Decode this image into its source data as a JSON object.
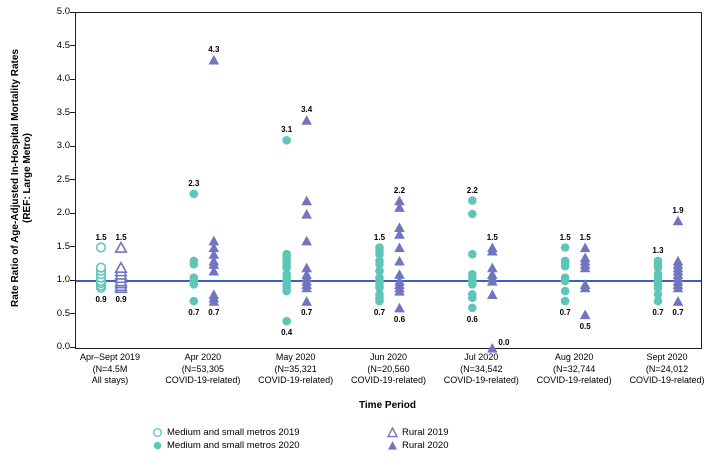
{
  "colors": {
    "teal": "#5ec6b6",
    "purple": "#7175bf",
    "reference_line": "#3b5fc7",
    "axis": "#231f20",
    "text": "#000000"
  },
  "chart_data": {
    "type": "scatter",
    "ylabel_line1": "Rate Ratio of Age-Adjusted In-Hospital Mortality Rates",
    "ylabel_line2": "(REF: Large Metro)",
    "xlabel": "Time Period",
    "ylim": [
      0.0,
      5.0
    ],
    "ytick_step": 0.5,
    "reference_line_y": 1.0,
    "legend_position": "bottom",
    "grid": false,
    "groups": [
      {
        "label_lines": [
          "Apr–Sept 2019",
          "(N=4.5M",
          "All stays)"
        ],
        "series": [
          {
            "name": "Medium and small metros 2019",
            "marker": "circle-open",
            "color": "teal",
            "values": [
              1.5,
              1.2,
              1.15,
              1.1,
              1.05,
              1.0,
              0.97,
              0.93,
              0.9
            ],
            "max_label": "1.5",
            "min_label": "0.9"
          },
          {
            "name": "Rural 2019",
            "marker": "triangle-open",
            "color": "purple",
            "values": [
              1.5,
              1.2,
              1.15,
              1.1,
              1.05,
              1.0,
              0.97,
              0.93,
              0.9
            ],
            "max_label": "1.5",
            "min_label": "0.9"
          }
        ]
      },
      {
        "label_lines": [
          "Apr 2020",
          "(N=53,305",
          "COVID-19-related)"
        ],
        "series": [
          {
            "name": "Medium and small metros 2020",
            "marker": "circle-filled",
            "color": "teal",
            "values": [
              2.3,
              1.3,
              1.25,
              1.05,
              1.0,
              0.95,
              0.7
            ],
            "max_label": "2.3",
            "min_label": "0.7"
          },
          {
            "name": "Rural 2020",
            "marker": "triangle-filled",
            "color": "purple",
            "values": [
              4.3,
              1.6,
              1.5,
              1.4,
              1.3,
              1.25,
              1.15,
              0.8,
              0.75,
              0.7
            ],
            "max_label": "4.3",
            "min_label": "0.7"
          }
        ]
      },
      {
        "label_lines": [
          "May 2020",
          "(N=35,321",
          "COVID-19-related)"
        ],
        "series": [
          {
            "name": "Medium and small metros 2020",
            "marker": "circle-filled",
            "color": "teal",
            "values": [
              3.1,
              1.4,
              1.35,
              1.3,
              1.25,
              1.2,
              1.1,
              1.05,
              1.0,
              0.95,
              0.9,
              0.85,
              0.4
            ],
            "max_label": "3.1",
            "min_label": "0.4"
          },
          {
            "name": "Rural 2020",
            "marker": "triangle-filled",
            "color": "purple",
            "values": [
              3.4,
              2.2,
              2.0,
              1.6,
              1.2,
              1.1,
              1.05,
              1.0,
              0.95,
              0.9,
              0.7
            ],
            "max_label": "3.4",
            "min_label": "0.7"
          }
        ]
      },
      {
        "label_lines": [
          "Jun 2020",
          "(N=20,560",
          "COVID-19-related)"
        ],
        "series": [
          {
            "name": "Medium and small metros 2020",
            "marker": "circle-filled",
            "color": "teal",
            "values": [
              1.5,
              1.45,
              1.4,
              1.3,
              1.25,
              1.15,
              1.05,
              1.0,
              0.95,
              0.9,
              0.8,
              0.75,
              0.7
            ],
            "max_label": "1.5",
            "min_label": "0.7"
          },
          {
            "name": "Rural 2020",
            "marker": "triangle-filled",
            "color": "purple",
            "values": [
              2.2,
              2.1,
              1.8,
              1.7,
              1.5,
              1.3,
              1.1,
              1.0,
              0.95,
              0.9,
              0.85,
              0.6
            ],
            "max_label": "2.2",
            "min_label": "0.6"
          }
        ]
      },
      {
        "label_lines": [
          "Jul 2020",
          "(N=34,542",
          "COVID-19-related)"
        ],
        "series": [
          {
            "name": "Medium and small metros 2020",
            "marker": "circle-filled",
            "color": "teal",
            "values": [
              2.2,
              2.0,
              1.4,
              1.1,
              1.05,
              1.0,
              0.95,
              0.8,
              0.75,
              0.6
            ],
            "max_label": "2.2",
            "min_label": "0.6"
          },
          {
            "name": "Rural 2020",
            "marker": "triangle-filled",
            "color": "purple",
            "values": [
              1.5,
              1.45,
              1.2,
              1.1,
              1.05,
              1.0,
              0.8,
              0.0
            ],
            "max_label": "1.5",
            "min_label": "0.0",
            "min_label_placement": "right"
          }
        ]
      },
      {
        "label_lines": [
          "Aug 2020",
          "(N=32,744",
          "COVID-19-related)"
        ],
        "series": [
          {
            "name": "Medium and small metros 2020",
            "marker": "circle-filled",
            "color": "teal",
            "values": [
              1.5,
              1.3,
              1.27,
              1.22,
              1.05,
              1.0,
              0.85,
              0.7
            ],
            "max_label": "1.5",
            "min_label": "0.7"
          },
          {
            "name": "Rural 2020",
            "marker": "triangle-filled",
            "color": "purple",
            "values": [
              1.5,
              1.35,
              1.3,
              1.25,
              1.2,
              0.95,
              0.9,
              0.5
            ],
            "max_label": "1.5",
            "min_label": "0.5"
          }
        ]
      },
      {
        "label_lines": [
          "Sept 2020",
          "(N=24,012",
          "COVID-19-related)"
        ],
        "series": [
          {
            "name": "Medium and small metros 2020",
            "marker": "circle-filled",
            "color": "teal",
            "values": [
              1.3,
              1.25,
              1.2,
              1.1,
              1.05,
              1.0,
              0.95,
              0.9,
              0.8,
              0.7
            ],
            "max_label": "1.3",
            "min_label": "0.7"
          },
          {
            "name": "Rural 2020",
            "marker": "triangle-filled",
            "color": "purple",
            "values": [
              1.9,
              1.3,
              1.25,
              1.2,
              1.15,
              1.1,
              1.05,
              1.0,
              0.95,
              0.9,
              0.7
            ],
            "max_label": "1.9",
            "min_label": "0.7"
          }
        ]
      }
    ],
    "legend": [
      {
        "marker": "circle-open",
        "color": "teal",
        "label": "Medium and small metros 2019"
      },
      {
        "marker": "circle-filled",
        "color": "teal",
        "label": "Medium and small metros 2020"
      },
      {
        "marker": "triangle-open",
        "color": "purple",
        "label": "Rural 2019"
      },
      {
        "marker": "triangle-filled",
        "color": "purple",
        "label": "Rural 2020"
      }
    ]
  }
}
